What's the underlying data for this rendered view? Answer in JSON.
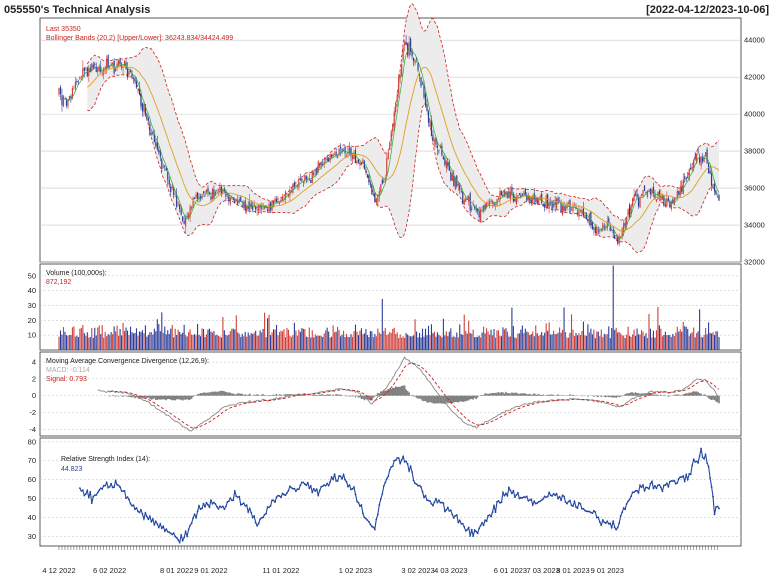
{
  "header": {
    "title": "055550's Technical Analysis",
    "date_range": "[2022-04-12/2023-10-06]"
  },
  "colors": {
    "up": "#d0413b",
    "down": "#2b3d99",
    "ma": "#e0a020",
    "bb_band": "#cc2222",
    "bb_fill": "#ececec",
    "macd_line": "#888888",
    "signal_line": "#cc2222",
    "rsi_line": "#2146a0",
    "grid": "#c8c8c8"
  },
  "chart_data": [
    {
      "type": "candlestick",
      "panel": "price",
      "labels": [
        "Last 35350",
        "Bollinger Bands (20,2) [Upper/Lower]: 36243.834/34424.499"
      ],
      "ylim": [
        32000,
        45200
      ],
      "yticks": [
        32000,
        34000,
        36000,
        38000,
        40000,
        42000,
        44000
      ],
      "last": 35350,
      "bb_upper_last": 36243.834,
      "bb_lower_last": 34424.499,
      "close_keypoints": [
        {
          "t": 0,
          "v": 41200
        },
        {
          "t": 5,
          "v": 40500
        },
        {
          "t": 15,
          "v": 42200
        },
        {
          "t": 30,
          "v": 42600
        },
        {
          "t": 43,
          "v": 42800
        },
        {
          "t": 50,
          "v": 41800
        },
        {
          "t": 62,
          "v": 39000
        },
        {
          "t": 75,
          "v": 36000
        },
        {
          "t": 84,
          "v": 34200
        },
        {
          "t": 92,
          "v": 35500
        },
        {
          "t": 105,
          "v": 35800
        },
        {
          "t": 118,
          "v": 35400
        },
        {
          "t": 132,
          "v": 34800
        },
        {
          "t": 145,
          "v": 35200
        },
        {
          "t": 160,
          "v": 36100
        },
        {
          "t": 175,
          "v": 37200
        },
        {
          "t": 190,
          "v": 38100
        },
        {
          "t": 203,
          "v": 37400
        },
        {
          "t": 212,
          "v": 35200
        },
        {
          "t": 218,
          "v": 36500
        },
        {
          "t": 225,
          "v": 40000
        },
        {
          "t": 232,
          "v": 44000
        },
        {
          "t": 237,
          "v": 43200
        },
        {
          "t": 242,
          "v": 42200
        },
        {
          "t": 250,
          "v": 39000
        },
        {
          "t": 260,
          "v": 37200
        },
        {
          "t": 272,
          "v": 35500
        },
        {
          "t": 282,
          "v": 34600
        },
        {
          "t": 295,
          "v": 35500
        },
        {
          "t": 310,
          "v": 35600
        },
        {
          "t": 325,
          "v": 35200
        },
        {
          "t": 340,
          "v": 35000
        },
        {
          "t": 352,
          "v": 34600
        },
        {
          "t": 362,
          "v": 33600
        },
        {
          "t": 368,
          "v": 34300
        },
        {
          "t": 375,
          "v": 33000
        },
        {
          "t": 385,
          "v": 35200
        },
        {
          "t": 398,
          "v": 35800
        },
        {
          "t": 410,
          "v": 35200
        },
        {
          "t": 420,
          "v": 36200
        },
        {
          "t": 428,
          "v": 37800
        },
        {
          "t": 434,
          "v": 37600
        },
        {
          "t": 440,
          "v": 35700
        },
        {
          "t": 443,
          "v": 35350
        }
      ]
    },
    {
      "type": "bar",
      "panel": "volume",
      "label": "Volume (100,000s):",
      "last_value_label": "872,192",
      "ylim": [
        0,
        58
      ],
      "yticks": [
        10,
        20,
        30,
        40,
        50
      ],
      "last": 8.72192
    },
    {
      "type": "line",
      "panel": "macd",
      "label": "Moving Average Convergence Divergence (12,26,9):",
      "macd_label": "MACD: -0.114",
      "signal_label": "Signal: 0.793",
      "ylim": [
        -4.8,
        5.2
      ],
      "yticks": [
        -4,
        -2,
        0,
        2,
        4
      ],
      "macd_last": -0.114,
      "signal_last": 0.793,
      "macd_keypoints": [
        {
          "t": 26,
          "v": 0.6
        },
        {
          "t": 45,
          "v": 0.4
        },
        {
          "t": 60,
          "v": -0.8
        },
        {
          "t": 75,
          "v": -2.6
        },
        {
          "t": 88,
          "v": -4.2
        },
        {
          "t": 100,
          "v": -2.8
        },
        {
          "t": 112,
          "v": -1.2
        },
        {
          "t": 128,
          "v": -0.7
        },
        {
          "t": 142,
          "v": -0.5
        },
        {
          "t": 158,
          "v": 0.1
        },
        {
          "t": 172,
          "v": 0.3
        },
        {
          "t": 188,
          "v": 0.8
        },
        {
          "t": 200,
          "v": 0.5
        },
        {
          "t": 210,
          "v": -1.0
        },
        {
          "t": 220,
          "v": 1.0
        },
        {
          "t": 232,
          "v": 4.5
        },
        {
          "t": 242,
          "v": 3.2
        },
        {
          "t": 252,
          "v": 0.8
        },
        {
          "t": 262,
          "v": -1.5
        },
        {
          "t": 272,
          "v": -3.2
        },
        {
          "t": 280,
          "v": -3.8
        },
        {
          "t": 292,
          "v": -2.6
        },
        {
          "t": 305,
          "v": -1.4
        },
        {
          "t": 318,
          "v": -0.8
        },
        {
          "t": 332,
          "v": -0.5
        },
        {
          "t": 345,
          "v": -0.4
        },
        {
          "t": 358,
          "v": -0.6
        },
        {
          "t": 368,
          "v": -0.9
        },
        {
          "t": 376,
          "v": -1.4
        },
        {
          "t": 386,
          "v": -0.3
        },
        {
          "t": 398,
          "v": 0.5
        },
        {
          "t": 410,
          "v": 0.4
        },
        {
          "t": 420,
          "v": 0.8
        },
        {
          "t": 428,
          "v": 2.0
        },
        {
          "t": 434,
          "v": 1.8
        },
        {
          "t": 443,
          "v": -0.114
        }
      ]
    },
    {
      "type": "line",
      "panel": "rsi",
      "label": "Relative Strength Index (14):",
      "last_value_label": "44.823",
      "ylim": [
        25,
        82
      ],
      "yticks": [
        30,
        40,
        50,
        60,
        70,
        80
      ],
      "last": 44.823,
      "keypoints": [
        {
          "t": 14,
          "v": 55
        },
        {
          "t": 22,
          "v": 50
        },
        {
          "t": 30,
          "v": 57
        },
        {
          "t": 40,
          "v": 58
        },
        {
          "t": 48,
          "v": 48
        },
        {
          "t": 58,
          "v": 40
        },
        {
          "t": 68,
          "v": 36
        },
        {
          "t": 78,
          "v": 29
        },
        {
          "t": 86,
          "v": 31
        },
        {
          "t": 94,
          "v": 45
        },
        {
          "t": 102,
          "v": 48
        },
        {
          "t": 110,
          "v": 44
        },
        {
          "t": 118,
          "v": 52
        },
        {
          "t": 126,
          "v": 45
        },
        {
          "t": 134,
          "v": 37
        },
        {
          "t": 142,
          "v": 48
        },
        {
          "t": 150,
          "v": 52
        },
        {
          "t": 158,
          "v": 56
        },
        {
          "t": 166,
          "v": 58
        },
        {
          "t": 174,
          "v": 54
        },
        {
          "t": 182,
          "v": 60
        },
        {
          "t": 190,
          "v": 62
        },
        {
          "t": 198,
          "v": 54
        },
        {
          "t": 206,
          "v": 40
        },
        {
          "t": 212,
          "v": 33
        },
        {
          "t": 218,
          "v": 58
        },
        {
          "t": 226,
          "v": 70
        },
        {
          "t": 232,
          "v": 72
        },
        {
          "t": 238,
          "v": 62
        },
        {
          "t": 246,
          "v": 50
        },
        {
          "t": 254,
          "v": 48
        },
        {
          "t": 262,
          "v": 44
        },
        {
          "t": 270,
          "v": 36
        },
        {
          "t": 278,
          "v": 31
        },
        {
          "t": 286,
          "v": 38
        },
        {
          "t": 294,
          "v": 46
        },
        {
          "t": 302,
          "v": 54
        },
        {
          "t": 310,
          "v": 52
        },
        {
          "t": 318,
          "v": 48
        },
        {
          "t": 326,
          "v": 50
        },
        {
          "t": 334,
          "v": 52
        },
        {
          "t": 342,
          "v": 48
        },
        {
          "t": 350,
          "v": 45
        },
        {
          "t": 358,
          "v": 42
        },
        {
          "t": 366,
          "v": 38
        },
        {
          "t": 374,
          "v": 35
        },
        {
          "t": 382,
          "v": 50
        },
        {
          "t": 390,
          "v": 56
        },
        {
          "t": 398,
          "v": 58
        },
        {
          "t": 406,
          "v": 55
        },
        {
          "t": 414,
          "v": 60
        },
        {
          "t": 422,
          "v": 62
        },
        {
          "t": 428,
          "v": 70
        },
        {
          "t": 432,
          "v": 74
        },
        {
          "t": 436,
          "v": 68
        },
        {
          "t": 440,
          "v": 44
        },
        {
          "t": 443,
          "v": 44.823
        }
      ]
    }
  ],
  "x_axis": {
    "n_bars": 444,
    "tick_labels": [
      {
        "label": "4 12 2022",
        "t": 0
      },
      {
        "label": "6 02 2022",
        "t": 34
      },
      {
        "label": "8 01 2022",
        "t": 79
      },
      {
        "label": "9 01 2022",
        "t": 102
      },
      {
        "label": "11 01 2022",
        "t": 149
      },
      {
        "label": "1 02 2023",
        "t": 199
      },
      {
        "label": "3 02 2023",
        "t": 241
      },
      {
        "label": "4 03 2023",
        "t": 263
      },
      {
        "label": "6 01 2023",
        "t": 303
      },
      {
        "label": "7 03 2023",
        "t": 325
      },
      {
        "label": "8 01 2023",
        "t": 345
      },
      {
        "label": "9 01 2023",
        "t": 368
      }
    ]
  }
}
